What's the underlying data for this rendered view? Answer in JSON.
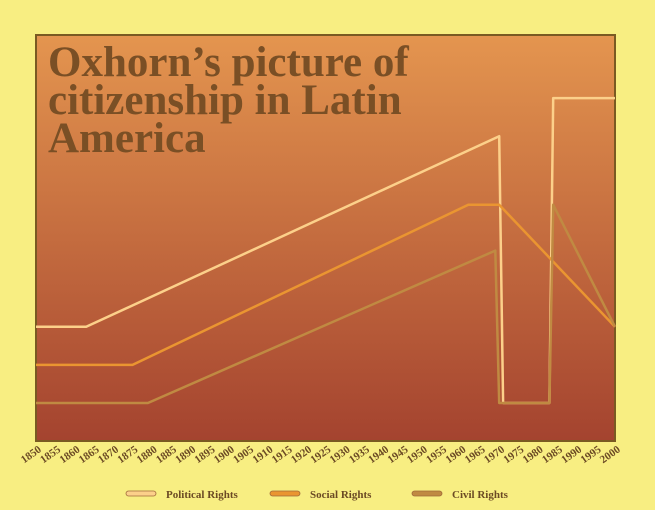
{
  "chart_data": {
    "type": "line",
    "title": "Oxhorn’s picture of citizenship in Latin America",
    "xlabel": "",
    "ylabel": "",
    "x": [
      1850,
      1855,
      1860,
      1865,
      1870,
      1875,
      1880,
      1885,
      1890,
      1895,
      1900,
      1905,
      1910,
      1915,
      1920,
      1925,
      1930,
      1935,
      1940,
      1945,
      1950,
      1955,
      1960,
      1965,
      1970,
      1975,
      1980,
      1985,
      1990,
      1995,
      2000
    ],
    "xlim": [
      1850,
      2000
    ],
    "ylim": [
      0,
      10
    ],
    "grid": false,
    "legend_position": "bottom",
    "colors": {
      "background": "#f8ee82",
      "plot_top": "#e4954f",
      "plot_bottom": "#a4432f",
      "frame": "#7a5a22"
    },
    "series": [
      {
        "name": "Political Rights",
        "color": "#fcd08a",
        "points": [
          [
            1850,
            3.0
          ],
          [
            1863,
            3.0
          ],
          [
            1970,
            8.0
          ],
          [
            1971,
            1.0
          ],
          [
            1983,
            1.0
          ],
          [
            1984,
            9.0
          ],
          [
            2000,
            9.0
          ]
        ]
      },
      {
        "name": "Social Rights",
        "color": "#ea9531",
        "points": [
          [
            1850,
            2.0
          ],
          [
            1875,
            2.0
          ],
          [
            1962,
            6.2
          ],
          [
            1970,
            6.2
          ],
          [
            2000,
            3.0
          ]
        ]
      },
      {
        "name": "Civil Rights",
        "color": "#c08a42",
        "points": [
          [
            1850,
            1.0
          ],
          [
            1879,
            1.0
          ],
          [
            1969,
            5.0
          ],
          [
            1970,
            1.0
          ],
          [
            1983,
            1.0
          ],
          [
            1984,
            6.2
          ],
          [
            2000,
            3.0
          ]
        ]
      }
    ]
  }
}
